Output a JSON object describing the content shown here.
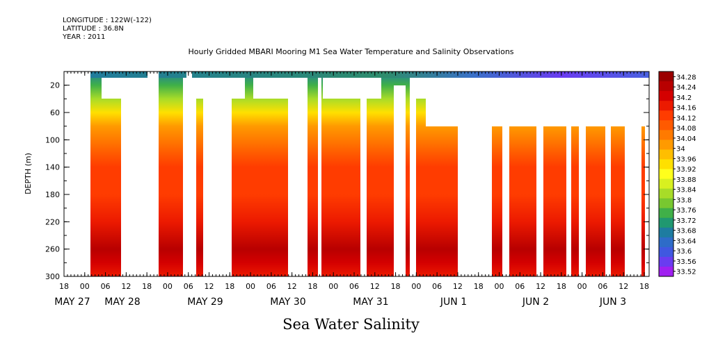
{
  "header": {
    "longitude": "LONGITUDE : 122W(-122)",
    "latitude": "LATITUDE : 36.8N",
    "year": "YEAR : 2011",
    "title": "Hourly Gridded MBARI Mooring M1 Sea Water Temperature and Salinity Observations"
  },
  "chart_data": {
    "type": "heatmap",
    "title": "Sea Water Salinity",
    "ylabel": "DEPTH (m)",
    "xlabel": "",
    "y_reversed": true,
    "ylim": [
      0,
      300
    ],
    "y_ticks": [
      "20",
      "60",
      "100",
      "140",
      "180",
      "220",
      "260",
      "300"
    ],
    "x_hour_ticks": [
      "18",
      "00",
      "06",
      "12",
      "18",
      "00",
      "06",
      "12",
      "18",
      "00",
      "06",
      "12",
      "18",
      "00",
      "06",
      "12",
      "18",
      "00",
      "06",
      "12",
      "18",
      "00",
      "06",
      "12",
      "18",
      "00",
      "06",
      "12",
      "18"
    ],
    "x_day_labels": [
      "MAY 27",
      "MAY 28",
      "MAY 29",
      "MAY 30",
      "MAY 31",
      "JUN  1",
      "JUN  2",
      "JUN  3"
    ],
    "colorbar": {
      "min": 33.52,
      "max": 34.28,
      "labels": [
        "34.28",
        "34.24",
        "34.2",
        "34.16",
        "34.12",
        "34.08",
        "34.04",
        "34",
        "33.96",
        "33.92",
        "33.88",
        "33.84",
        "33.8",
        "33.76",
        "33.72",
        "33.68",
        "33.64",
        "33.6",
        "33.56",
        "33.52"
      ],
      "colors": [
        "#9b0000",
        "#b80000",
        "#d40000",
        "#ec1a00",
        "#ff3c00",
        "#ff5a00",
        "#ff7a00",
        "#ff9a00",
        "#ffbe00",
        "#ffe000",
        "#ffff1c",
        "#d8f020",
        "#a8dc28",
        "#78c830",
        "#40b048",
        "#209870",
        "#1e7ca0",
        "#2e6cc8",
        "#4058e0",
        "#6a3cf0",
        "#a020f0"
      ]
    },
    "depth_profile_salinity": [
      {
        "depth": 0,
        "value": 33.68
      },
      {
        "depth": 20,
        "value": 33.76
      },
      {
        "depth": 40,
        "value": 33.84
      },
      {
        "depth": 60,
        "value": 33.92
      },
      {
        "depth": 80,
        "value": 34.0
      },
      {
        "depth": 100,
        "value": 34.04
      },
      {
        "depth": 120,
        "value": 34.08
      },
      {
        "depth": 140,
        "value": 34.12
      },
      {
        "depth": 180,
        "value": 34.14
      },
      {
        "depth": 220,
        "value": 34.16
      },
      {
        "depth": 260,
        "value": 34.24
      },
      {
        "depth": 280,
        "value": 34.2
      },
      {
        "depth": 300,
        "value": 34.16
      }
    ]
  }
}
